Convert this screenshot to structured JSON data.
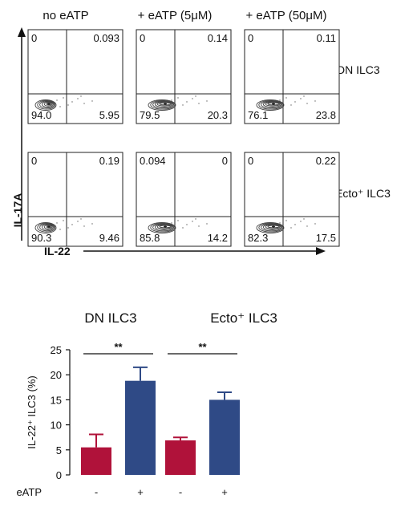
{
  "flow": {
    "column_titles": [
      "no eATP",
      "+ eATP (5μM)",
      "+ eATP (50μM)"
    ],
    "row_labels": [
      "DN ILC3",
      "Ecto⁺ ILC3"
    ],
    "y_axis_label": "IL-17A",
    "x_axis_label": "IL-22",
    "panels": [
      [
        {
          "top_left": "0",
          "top_right": "0.093",
          "bottom_left": "94.0",
          "bottom_right": "5.95"
        },
        {
          "top_left": "0",
          "top_right": "0.14",
          "bottom_left": "79.5",
          "bottom_right": "20.3"
        },
        {
          "top_left": "0",
          "top_right": "0.11",
          "bottom_left": "76.1",
          "bottom_right": "23.8"
        }
      ],
      [
        {
          "top_left": "0",
          "top_right": "0.19",
          "bottom_left": "90.3",
          "bottom_right": "9.46"
        },
        {
          "top_left": "0.094",
          "top_right": "0",
          "bottom_left": "85.8",
          "bottom_right": "14.2"
        },
        {
          "top_left": "0",
          "top_right": "0.22",
          "bottom_left": "82.3",
          "bottom_right": "17.5"
        }
      ]
    ],
    "colors": {
      "contour": "#444444",
      "line": "#222222"
    }
  },
  "chart_data": {
    "type": "bar",
    "groups": [
      "DN ILC3",
      "Ecto⁺ ILC3"
    ],
    "categories": [
      "-",
      "+",
      "-",
      "+"
    ],
    "x_row_label": "eATP",
    "ylabel": "IL-22⁺ ILC3 (%)",
    "ylim": [
      0,
      25
    ],
    "yticks": [
      0,
      5,
      10,
      15,
      20,
      25
    ],
    "ytick_labels": [
      "0",
      "5",
      "10",
      "15",
      "20",
      "25"
    ],
    "values": [
      5.5,
      18.8,
      6.9,
      15.0
    ],
    "errors": [
      2.6,
      2.7,
      0.6,
      1.5
    ],
    "colors": [
      "#b0123a",
      "#2f4a86",
      "#b0123a",
      "#2f4a86"
    ],
    "significance": [
      {
        "label": "**",
        "from": 0,
        "to": 1
      },
      {
        "label": "**",
        "from": 2,
        "to": 3
      }
    ]
  }
}
